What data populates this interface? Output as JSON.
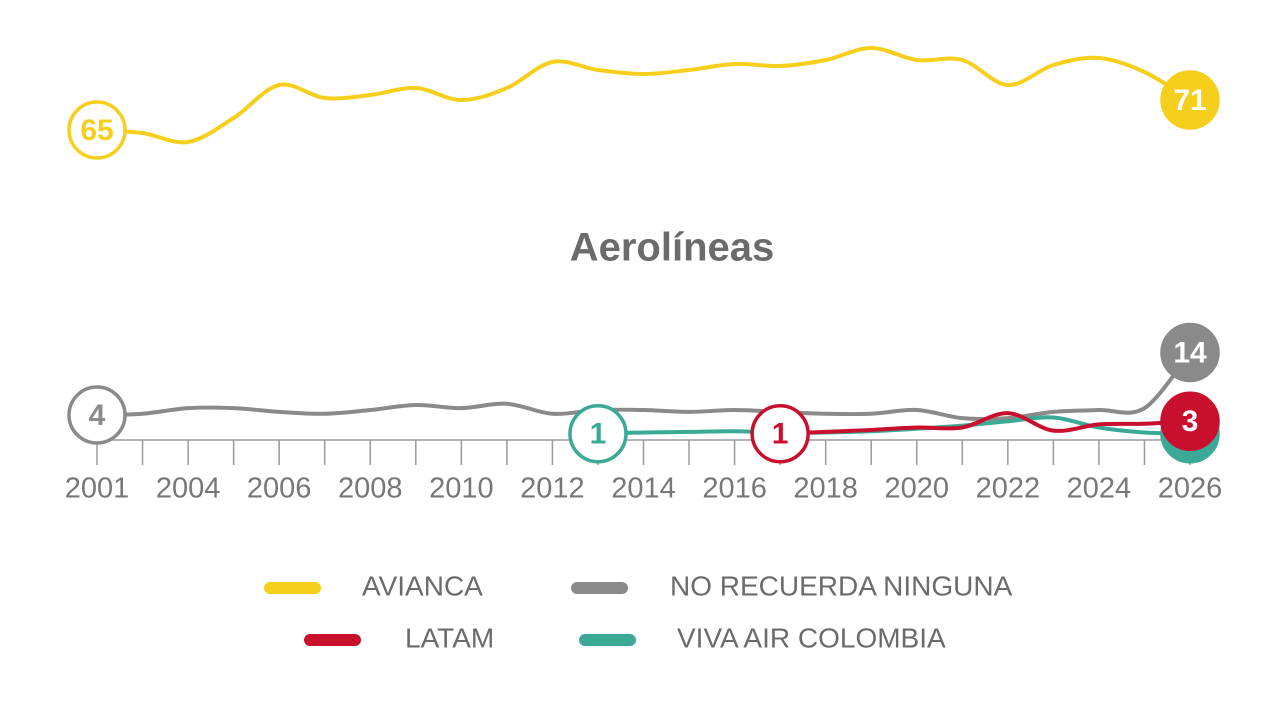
{
  "chart_data": {
    "type": "line",
    "title": "Aerolíneas",
    "categories": [
      "2001",
      null,
      "2004",
      null,
      "2006",
      null,
      "2008",
      null,
      "2010",
      null,
      "2012",
      null,
      "2014",
      null,
      "2016",
      null,
      "2018",
      null,
      "2020",
      null,
      "2022",
      null,
      "2024",
      null,
      "2026"
    ],
    "ylim": [
      0,
      16
    ],
    "y2lim": [
      60,
      82
    ],
    "series": [
      {
        "name": "AVIANCA",
        "color": "#f5cf1c",
        "axis": "y2",
        "values": [
          65,
          64.4,
          62.6,
          67.4,
          74,
          71.4,
          72,
          73.4,
          71,
          73.4,
          78.6,
          77,
          76.2,
          77,
          78.2,
          77.8,
          79,
          81.4,
          79,
          79,
          74,
          78,
          79.4,
          76.6,
          71
        ]
      },
      {
        "name": "NO RECUERDA NINGUNA",
        "color": "#8a8a8a",
        "values": [
          4,
          4.2,
          5.1,
          5.1,
          4.5,
          4.2,
          4.8,
          5.6,
          5.1,
          5.8,
          4.2,
          4.8,
          4.8,
          4.5,
          4.8,
          4.5,
          4.2,
          4.2,
          4.8,
          3.5,
          3.5,
          4.5,
          4.8,
          5.1,
          14
        ]
      },
      {
        "name": "LATAM",
        "color": "#c8102e",
        "values": [
          null,
          null,
          null,
          null,
          null,
          null,
          null,
          null,
          null,
          null,
          null,
          null,
          null,
          null,
          null,
          1,
          1.3,
          1.6,
          2,
          2,
          4.3,
          1.5,
          2.5,
          2.6,
          3
        ]
      },
      {
        "name": "VIVA AIR COLOMBIA",
        "color": "#3aaa97",
        "values": [
          null,
          null,
          null,
          null,
          null,
          null,
          null,
          null,
          null,
          null,
          null,
          1,
          1.2,
          1.3,
          1.4,
          1.2,
          1.2,
          1.4,
          1.8,
          2.3,
          3,
          3.6,
          2,
          1.2,
          1
        ]
      }
    ]
  }
}
